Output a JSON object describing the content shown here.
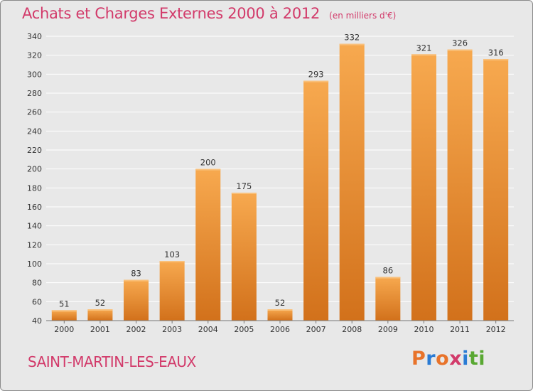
{
  "title": "Achats et Charges Externes 2000 à 2012",
  "subtitle": "(en milliers d'€)",
  "commune": "SAINT-MARTIN-LES-EAUX",
  "brand": {
    "text": "Proxiti",
    "colors": [
      "#e8732a",
      "#2a7bd4",
      "#e8732a",
      "#d23a6a",
      "#2a7bd4",
      "#59a832",
      "#59a832"
    ]
  },
  "colors": {
    "accent": "#d23a6a",
    "bar_top": "#f7a94f",
    "bar_bottom": "#d2711b",
    "background": "#e8e8e8",
    "grid": "#ffffff"
  },
  "chart_data": {
    "type": "bar",
    "title": "Achats et Charges Externes 2000 à 2012",
    "subtitle": "(en milliers d'€)",
    "categories": [
      "2000",
      "2001",
      "2002",
      "2003",
      "2004",
      "2005",
      "2006",
      "2007",
      "2008",
      "2009",
      "2010",
      "2011",
      "2012"
    ],
    "values": [
      51,
      52,
      83,
      103,
      200,
      175,
      52,
      293,
      332,
      86,
      321,
      326,
      316
    ],
    "ylim": [
      40,
      340
    ],
    "yticks": [
      40,
      60,
      80,
      100,
      120,
      140,
      160,
      180,
      200,
      220,
      240,
      260,
      280,
      300,
      320,
      340
    ],
    "grid": true,
    "data_labels": true,
    "xlabel": "",
    "ylabel": ""
  }
}
